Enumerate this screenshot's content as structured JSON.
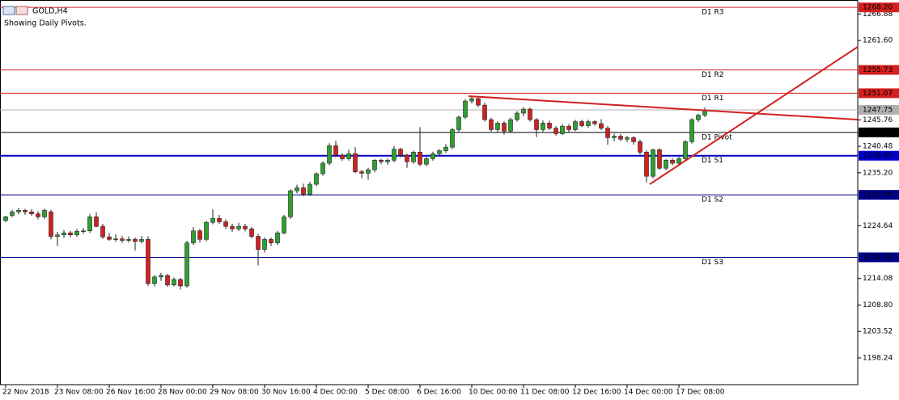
{
  "chart_data": {
    "type": "candlestick",
    "title": "GOLD,H4",
    "subtitle": "Showing Daily Pivots.",
    "categories": [
      "22 Nov 2018",
      null,
      null,
      null,
      null,
      null,
      null,
      null,
      "23 Nov 08:00",
      null,
      null,
      null,
      null,
      null,
      null,
      null,
      "26 Nov 16:00",
      null,
      null,
      null,
      null,
      null,
      null,
      null,
      "28 Nov 00:00",
      null,
      null,
      null,
      null,
      null,
      null,
      null,
      "29 Nov 08:00",
      null,
      null,
      null,
      null,
      null,
      null,
      null,
      "30 Nov 16:00",
      null,
      null,
      null,
      null,
      null,
      null,
      null,
      "4 Dec 00:00",
      null,
      null,
      null,
      null,
      null,
      null,
      null,
      "5 Dec 08:00",
      null,
      null,
      null,
      null,
      null,
      null,
      null,
      "6 Dec 16:00",
      null,
      null,
      null,
      null,
      null,
      null,
      null,
      "10 Dec 00:00",
      null,
      null,
      null,
      null,
      null,
      null,
      null,
      "11 Dec 08:00",
      null,
      null,
      null,
      null,
      null,
      null,
      null,
      "12 Dec 16:00",
      null,
      null,
      null,
      null,
      null,
      null,
      null,
      "14 Dec 00:00",
      null,
      null,
      null,
      null,
      null,
      null,
      null,
      "17 Dec 08:00",
      null,
      null,
      null,
      null
    ],
    "open": [
      1225.7,
      1226.7,
      1227.4,
      1227.7,
      1227.4,
      1227.0,
      1226.4,
      1227.4,
      1222.5,
      1222.8,
      1223.2,
      1222.8,
      1223.5,
      1223.6,
      1226.4,
      1224.5,
      1222.4,
      1221.9,
      1222.0,
      1221.7,
      1221.9,
      1221.5,
      1221.9,
      1213.1,
      1214.4,
      1214.7,
      1212.8,
      1213.9,
      1212.6,
      1221.2,
      1223.6,
      1221.9,
      1225.3,
      1226.1,
      1225.4,
      1224.5,
      1224.0,
      1224.5,
      1224.0,
      1222.5,
      1219.9,
      1221.9,
      1221.2,
      1223.2,
      1226.4,
      1231.6,
      1232.2,
      1230.9,
      1232.9,
      1235.0,
      1237.1,
      1240.6,
      1238.7,
      1238.0,
      1239.0,
      1235.4,
      1235.1,
      1235.8,
      1237.7,
      1237.4,
      1237.7,
      1239.9,
      1238.7,
      1237.4,
      1239.3,
      1236.9,
      1238.0,
      1239.0,
      1239.6,
      1240.3,
      1243.8,
      1246.3,
      1249.5,
      1250.0,
      1248.7,
      1245.8,
      1243.8,
      1245.1,
      1243.5,
      1245.8,
      1247.1,
      1247.9,
      1245.8,
      1243.8,
      1245.1,
      1244.1,
      1243.0,
      1244.5,
      1243.8,
      1245.4,
      1244.6,
      1245.4,
      1245.0,
      1244.1,
      1242.2,
      1242.5,
      1241.9,
      1242.2,
      1241.4,
      1239.3,
      1234.5,
      1239.8,
      1236.1,
      1237.7,
      1237.1,
      1238.0,
      1241.4,
      1245.8,
      1246.7
    ],
    "high": [
      1226.6,
      1227.8,
      1228.2,
      1228.0,
      1227.9,
      1227.5,
      1228.0,
      1227.8,
      1223.4,
      1223.8,
      1223.6,
      1224.0,
      1224.2,
      1227.0,
      1227.3,
      1225.0,
      1223.2,
      1222.9,
      1222.6,
      1222.5,
      1222.3,
      1222.6,
      1222.5,
      1214.8,
      1215.2,
      1215.0,
      1214.3,
      1214.2,
      1221.6,
      1224.4,
      1224.0,
      1225.6,
      1227.9,
      1226.8,
      1225.9,
      1225.0,
      1225.2,
      1225.0,
      1224.4,
      1223.0,
      1222.3,
      1222.3,
      1223.6,
      1226.8,
      1231.9,
      1232.8,
      1233.0,
      1233.4,
      1235.3,
      1237.5,
      1241.1,
      1241.6,
      1239.1,
      1239.8,
      1240.3,
      1235.8,
      1236.2,
      1237.9,
      1238.0,
      1238.1,
      1240.5,
      1240.2,
      1239.0,
      1239.6,
      1244.3,
      1238.4,
      1239.4,
      1239.9,
      1240.9,
      1244.2,
      1246.6,
      1249.9,
      1250.6,
      1250.4,
      1249.2,
      1246.2,
      1245.5,
      1245.5,
      1246.2,
      1247.5,
      1248.3,
      1248.2,
      1246.1,
      1245.6,
      1245.6,
      1244.5,
      1244.9,
      1244.9,
      1245.8,
      1245.8,
      1245.8,
      1245.7,
      1245.9,
      1244.5,
      1243.0,
      1242.9,
      1242.6,
      1242.5,
      1241.8,
      1239.7,
      1240.0,
      1240.1,
      1237.9,
      1238.1,
      1238.4,
      1241.7,
      1246.1,
      1247.0,
      1248.2
    ],
    "low": [
      1225.3,
      1226.3,
      1226.9,
      1226.8,
      1226.6,
      1225.9,
      1226.0,
      1221.9,
      1220.6,
      1222.2,
      1222.3,
      1222.4,
      1223.0,
      1223.2,
      1224.3,
      1222.0,
      1221.6,
      1221.4,
      1221.2,
      1221.3,
      1219.7,
      1221.1,
      1212.6,
      1212.5,
      1213.6,
      1212.4,
      1212.5,
      1211.9,
      1212.3,
      1220.8,
      1221.3,
      1221.5,
      1224.9,
      1225.0,
      1224.0,
      1223.4,
      1223.6,
      1223.5,
      1222.1,
      1216.7,
      1219.3,
      1220.6,
      1220.8,
      1222.9,
      1226.0,
      1231.1,
      1230.5,
      1230.6,
      1232.5,
      1234.6,
      1236.7,
      1238.3,
      1237.6,
      1237.6,
      1235.1,
      1234.1,
      1233.8,
      1235.3,
      1236.9,
      1236.8,
      1237.3,
      1238.3,
      1236.2,
      1237.0,
      1236.5,
      1236.5,
      1237.6,
      1238.6,
      1239.2,
      1239.9,
      1243.4,
      1245.9,
      1249.0,
      1248.3,
      1245.4,
      1243.4,
      1243.3,
      1242.8,
      1243.1,
      1245.4,
      1246.5,
      1245.4,
      1242.3,
      1243.4,
      1243.7,
      1242.6,
      1242.7,
      1243.3,
      1243.5,
      1244.3,
      1244.2,
      1244.6,
      1243.7,
      1240.8,
      1241.5,
      1241.5,
      1241.3,
      1240.8,
      1238.9,
      1233.3,
      1234.1,
      1235.8,
      1235.7,
      1236.7,
      1236.8,
      1237.6,
      1241.0,
      1245.3,
      1246.3
    ],
    "close": [
      1226.4,
      1227.4,
      1227.7,
      1227.4,
      1227.0,
      1226.4,
      1227.7,
      1222.5,
      1222.8,
      1223.2,
      1222.8,
      1223.5,
      1223.6,
      1226.4,
      1224.5,
      1222.4,
      1221.9,
      1222.0,
      1221.7,
      1221.9,
      1221.5,
      1221.9,
      1213.1,
      1214.4,
      1214.7,
      1212.8,
      1213.9,
      1212.6,
      1221.2,
      1223.6,
      1221.9,
      1225.3,
      1226.1,
      1225.4,
      1224.5,
      1224.0,
      1224.5,
      1224.0,
      1222.5,
      1219.9,
      1221.9,
      1221.2,
      1223.2,
      1226.4,
      1231.6,
      1232.2,
      1230.9,
      1232.9,
      1235.0,
      1237.1,
      1240.6,
      1238.7,
      1238.0,
      1239.0,
      1235.4,
      1235.1,
      1235.8,
      1237.7,
      1237.4,
      1237.7,
      1239.9,
      1238.7,
      1237.4,
      1239.3,
      1236.9,
      1238.0,
      1239.0,
      1239.6,
      1240.3,
      1243.8,
      1246.3,
      1249.5,
      1250.0,
      1248.7,
      1245.8,
      1243.8,
      1245.1,
      1243.5,
      1245.8,
      1247.1,
      1247.9,
      1245.8,
      1243.8,
      1245.1,
      1244.1,
      1243.0,
      1244.5,
      1243.8,
      1245.4,
      1244.6,
      1245.4,
      1245.0,
      1244.1,
      1242.2,
      1242.5,
      1241.9,
      1242.2,
      1241.4,
      1239.3,
      1234.5,
      1239.8,
      1236.1,
      1237.7,
      1237.1,
      1238.0,
      1241.4,
      1245.8,
      1246.7,
      1247.75
    ],
    "up_color": "#2ea02e",
    "down_color": "#d02020",
    "ylim": [
      1192.91,
      1269.68
    ],
    "yticks": [
      1198.24,
      1203.52,
      {
        "value": 1208.8,
        "label": "1208.80"
      },
      1214.08,
      1224.64,
      {
        "value": 1235.2,
        "label": "1235.20"
      },
      1240.48,
      1245.76,
      {
        "value": 1261.6,
        "label": "1261.60"
      },
      1266.88
    ],
    "levels": [
      {
        "name": "D1 R3",
        "value": 1268.2,
        "label": "1268.20",
        "color": "#d42020"
      },
      {
        "name": "D1 R2",
        "value": 1255.73,
        "label": "1255.73",
        "color": "#d42020"
      },
      {
        "name": "D1 R1",
        "value": 1251.07,
        "label": "1251.07",
        "color": "#d42020"
      },
      {
        "name": "D1 Pivot",
        "value": 1243.26,
        "label": "1243.26",
        "color": "#000000"
      },
      {
        "name": "D1 S1",
        "value": 1238.6,
        "label": "1238.60",
        "color": "#0000c8"
      },
      {
        "name": "D1 S2",
        "value": 1230.79,
        "label": "1230.79",
        "color": "#00008b"
      },
      {
        "name": "D1 S3",
        "value": 1218.32,
        "label": "1218.32",
        "color": "#00008b"
      }
    ],
    "current_price": {
      "value": 1247.75,
      "label": "1247.75",
      "color": "#b0b0b0"
    }
  }
}
